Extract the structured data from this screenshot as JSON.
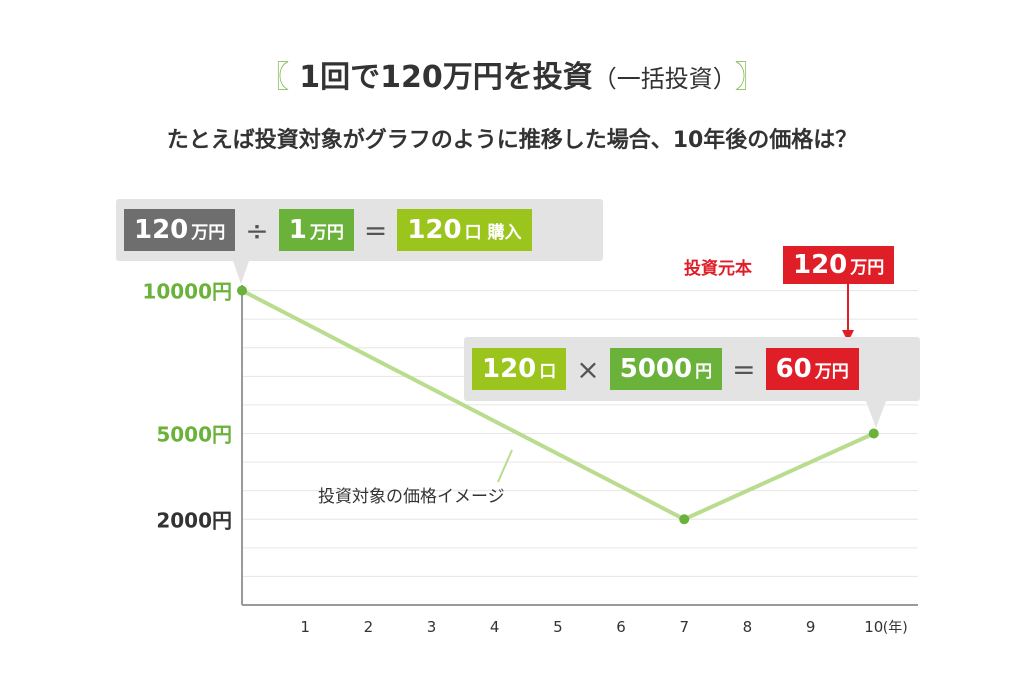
{
  "header": {
    "bracket_left": "〖",
    "title": "1回で120万円を投資",
    "title_sub": "（一括投資）",
    "bracket_right": "〗",
    "subtitle": "たとえば投資対象がグラフのように推移した場合、10年後の価格は？"
  },
  "purchase_formula": {
    "amount_value": "120",
    "amount_unit": "万円",
    "divide": "÷",
    "price_value": "1",
    "price_unit": "万円",
    "equals": "=",
    "units_value": "120",
    "units_unit": "口 購入"
  },
  "principal": {
    "label": "投資元本",
    "value": "120",
    "unit": "万円"
  },
  "result_formula": {
    "units_value": "120",
    "units_unit": "口",
    "times": "×",
    "price_value": "5000",
    "price_unit": "円",
    "equals": "=",
    "result_value": "60",
    "result_unit": "万円"
  },
  "colors": {
    "line": "#b9dc8f",
    "point": "#6ab23a",
    "green_label": "#6ab23a",
    "red": "#e01e28",
    "gray": "#6e6e6e",
    "lime": "#9bc41d"
  },
  "chart_data": {
    "type": "line",
    "title": "",
    "xlabel": "",
    "ylabel": "",
    "x_ticks": [
      "1",
      "2",
      "3",
      "4",
      "5",
      "6",
      "7",
      "8",
      "9",
      "10"
    ],
    "x_unit": "(年)",
    "y_ticks": [
      {
        "value": 10000,
        "label": "10000円",
        "highlight": true
      },
      {
        "value": 5000,
        "label": "5000円",
        "highlight": true
      },
      {
        "value": 2000,
        "label": "2000円",
        "highlight": false
      }
    ],
    "ylim": [
      -1000,
      11000
    ],
    "xlim": [
      0,
      10.7
    ],
    "grid": true,
    "series": [
      {
        "name": "投資対象の価格イメージ",
        "x": [
          0,
          7,
          10
        ],
        "y": [
          10000,
          2000,
          5000
        ]
      }
    ]
  }
}
